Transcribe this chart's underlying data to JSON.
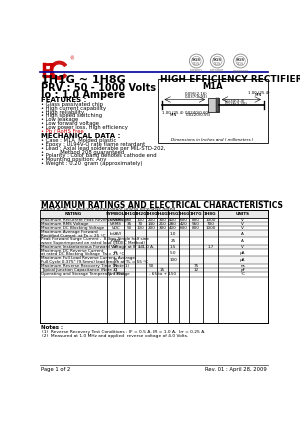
{
  "title_part": "1H1G ~ 1H8G",
  "title_type": "HIGH EFFICIENCY RECTIFIERS",
  "subtitle1": "PRV : 50 - 1000 Volts",
  "subtitle2": "Io : 1.0 Ampere",
  "features_title": "FEATURES :",
  "features": [
    "Glass passivated chip",
    "High current capability",
    "High reliability",
    "High speed switching",
    "Low leakage",
    "Low forward voltage",
    "Low power loss, High efficiency",
    "Pb / RoHS Free"
  ],
  "mech_title": "MECHANICAL DATA :",
  "mech": [
    "Case : M1A  Molded plastic",
    "Epoxy : UL94V-O rate flame retardant",
    "Lead : Axial lead solderable per MIL-STD-202,",
    "         Method 208 guaranteed",
    "Polarity : Color band denotes cathode end",
    "Mounting position: Any",
    "Weight : 0.20  gram (approximately)"
  ],
  "ratings_title": "MAXIMUM RATINGS AND ELECTRICAL CHARACTERISTICS",
  "ratings_sub": "Rating at 25 °C ambient temperature unless otherwise noted",
  "table_headers": [
    "RATING",
    "SYMBOL",
    "1H1G",
    "1H2G",
    "1H3G",
    "1H4G",
    "1H5G",
    "1H6G",
    "1H7G",
    "1H8G",
    "UNITS"
  ],
  "table_rows": [
    [
      "Maximum Recurrent Peak Reverse Voltage",
      "VRRM",
      "50",
      "100",
      "200",
      "300",
      "400",
      "600",
      "800",
      "1000",
      "V"
    ],
    [
      "Maximum RMS Voltage",
      "VRMS",
      "35",
      "70",
      "140",
      "210",
      "280",
      "420",
      "560",
      "700",
      "V"
    ],
    [
      "Maximum DC Blocking Voltage",
      "VDC",
      "50",
      "100",
      "200",
      "300",
      "400",
      "600",
      "800",
      "1000",
      "V"
    ],
    [
      "Maximum Average Forward\nRectified Current  at Ta = 25 °C",
      "Io(AV)",
      "",
      "",
      "",
      "",
      "1.0",
      "",
      "",
      "",
      "A"
    ],
    [
      "Peak Forward Surge Current ,  8.3ms Single half sine\nwave Superimposed on rated load (JEDEC Method)",
      "IFSM",
      "",
      "",
      "",
      "",
      "25",
      "",
      "",
      "",
      "A"
    ],
    [
      "Maximum Instantaneous Forward Voltage at IF = 1.0 A.",
      "VF",
      "",
      "1.0",
      "",
      "",
      "1.5",
      "",
      "",
      "1.7",
      "V"
    ],
    [
      "Maximum DC Reverse Current\nat rated DC Blocking Voltage  Ta = 25 °C",
      "IR",
      "",
      "",
      "",
      "",
      "5.0",
      "",
      "",
      "",
      "μA"
    ],
    [
      "Maximum Full Load Reverse Current  Average.\nFull Cycle 0.375” (9.5mm) lead length at TL = 55 °C",
      "IR",
      "",
      "",
      "",
      "",
      "100",
      "",
      "",
      "",
      "μA"
    ],
    [
      "Maximum Reverse Recovery Time (Note 1)",
      "Trr",
      "",
      "",
      "50",
      "",
      "",
      "",
      "75",
      "",
      "ns"
    ],
    [
      "Typical Junction Capacitance (Note 2)",
      "Cj",
      "",
      "",
      "",
      "15",
      "",
      "",
      "12",
      "",
      "pF"
    ],
    [
      "Operating and Storage Temperature Range",
      "TJ, TSTG",
      "",
      "",
      "",
      "- 65 to + 150",
      "",
      "",
      "",
      "",
      "°C"
    ]
  ],
  "notes_title": "Notes :",
  "notes": [
    "(1)  Reverse Recovery Test Conditions : IF = 0.5 A, IR = 1.0 A,  Irr = 0.25 A.",
    "(2)  Measured at 1.0 MHz and applied  reverse voltage of 4.0 Volts."
  ],
  "page_info": "Page 1 of 2",
  "rev_info": "Rev. 01 : April 28, 2009",
  "bg_color": "#ffffff",
  "text_color": "#000000",
  "eic_red": "#cc0000",
  "divider_blue": "#000099",
  "table_line_color": "#000000",
  "rohs_color": "#cc0000",
  "sgs_gray": "#888888"
}
